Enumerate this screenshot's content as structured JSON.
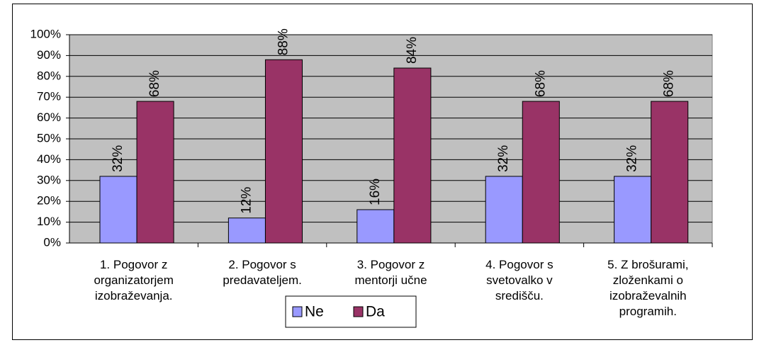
{
  "chart_data": {
    "type": "bar",
    "categories": [
      "1. Pogovor z organizatorjem izobraževanja.",
      "2. Pogovor s predavateljem.",
      "3. Pogovor z mentorji učne",
      "4. Pogovor s svetovalko v središču.",
      "5. Z brošurami, zloženkami o izobraževalnih programih."
    ],
    "series": [
      {
        "name": "Ne",
        "color": "#9999ff",
        "values": [
          32,
          12,
          16,
          32,
          32
        ],
        "value_labels": [
          "32%",
          "12%",
          "16%",
          "32%",
          "32%"
        ]
      },
      {
        "name": "Da",
        "color": "#993366",
        "values": [
          68,
          88,
          84,
          68,
          68
        ],
        "value_labels": [
          "68%",
          "88%",
          "84%",
          "68%",
          "68%"
        ]
      }
    ],
    "ylim": [
      0,
      100
    ],
    "yticks": [
      {
        "value": 0,
        "label": "0%"
      },
      {
        "value": 10,
        "label": "10%"
      },
      {
        "value": 20,
        "label": "20%"
      },
      {
        "value": 30,
        "label": "30%"
      },
      {
        "value": 40,
        "label": "40%"
      },
      {
        "value": 50,
        "label": "50%"
      },
      {
        "value": 60,
        "label": "60%"
      },
      {
        "value": 70,
        "label": "70%"
      },
      {
        "value": 80,
        "label": "80%"
      },
      {
        "value": 90,
        "label": "90%"
      },
      {
        "value": 100,
        "label": "100%"
      }
    ],
    "grid": true,
    "legend": "bottom"
  }
}
